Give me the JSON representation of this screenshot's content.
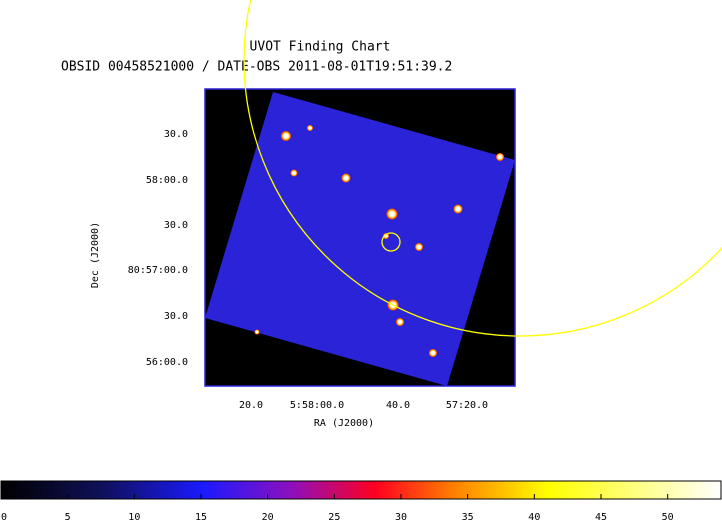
{
  "header": {
    "title": "UVOT Finding Chart",
    "subtitle": "OBSID 00458521000 / DATE-OBS 2011-08-01T19:51:39.2"
  },
  "x_axis": {
    "label": "RA (J2000)",
    "ticks": [
      "20.0",
      "5:58:00.0",
      "40.0",
      "57:20.0"
    ]
  },
  "y_axis": {
    "label": "Dec (J2000)",
    "ticks": [
      "30.0",
      "58:00.0",
      "30.0",
      "80:57:00.0",
      "30.0",
      "56:00.0"
    ]
  },
  "colorbar": {
    "lim": [
      0,
      54
    ],
    "ticks": [
      0,
      5,
      10,
      15,
      20,
      25,
      30,
      35,
      40,
      45,
      50
    ]
  }
}
